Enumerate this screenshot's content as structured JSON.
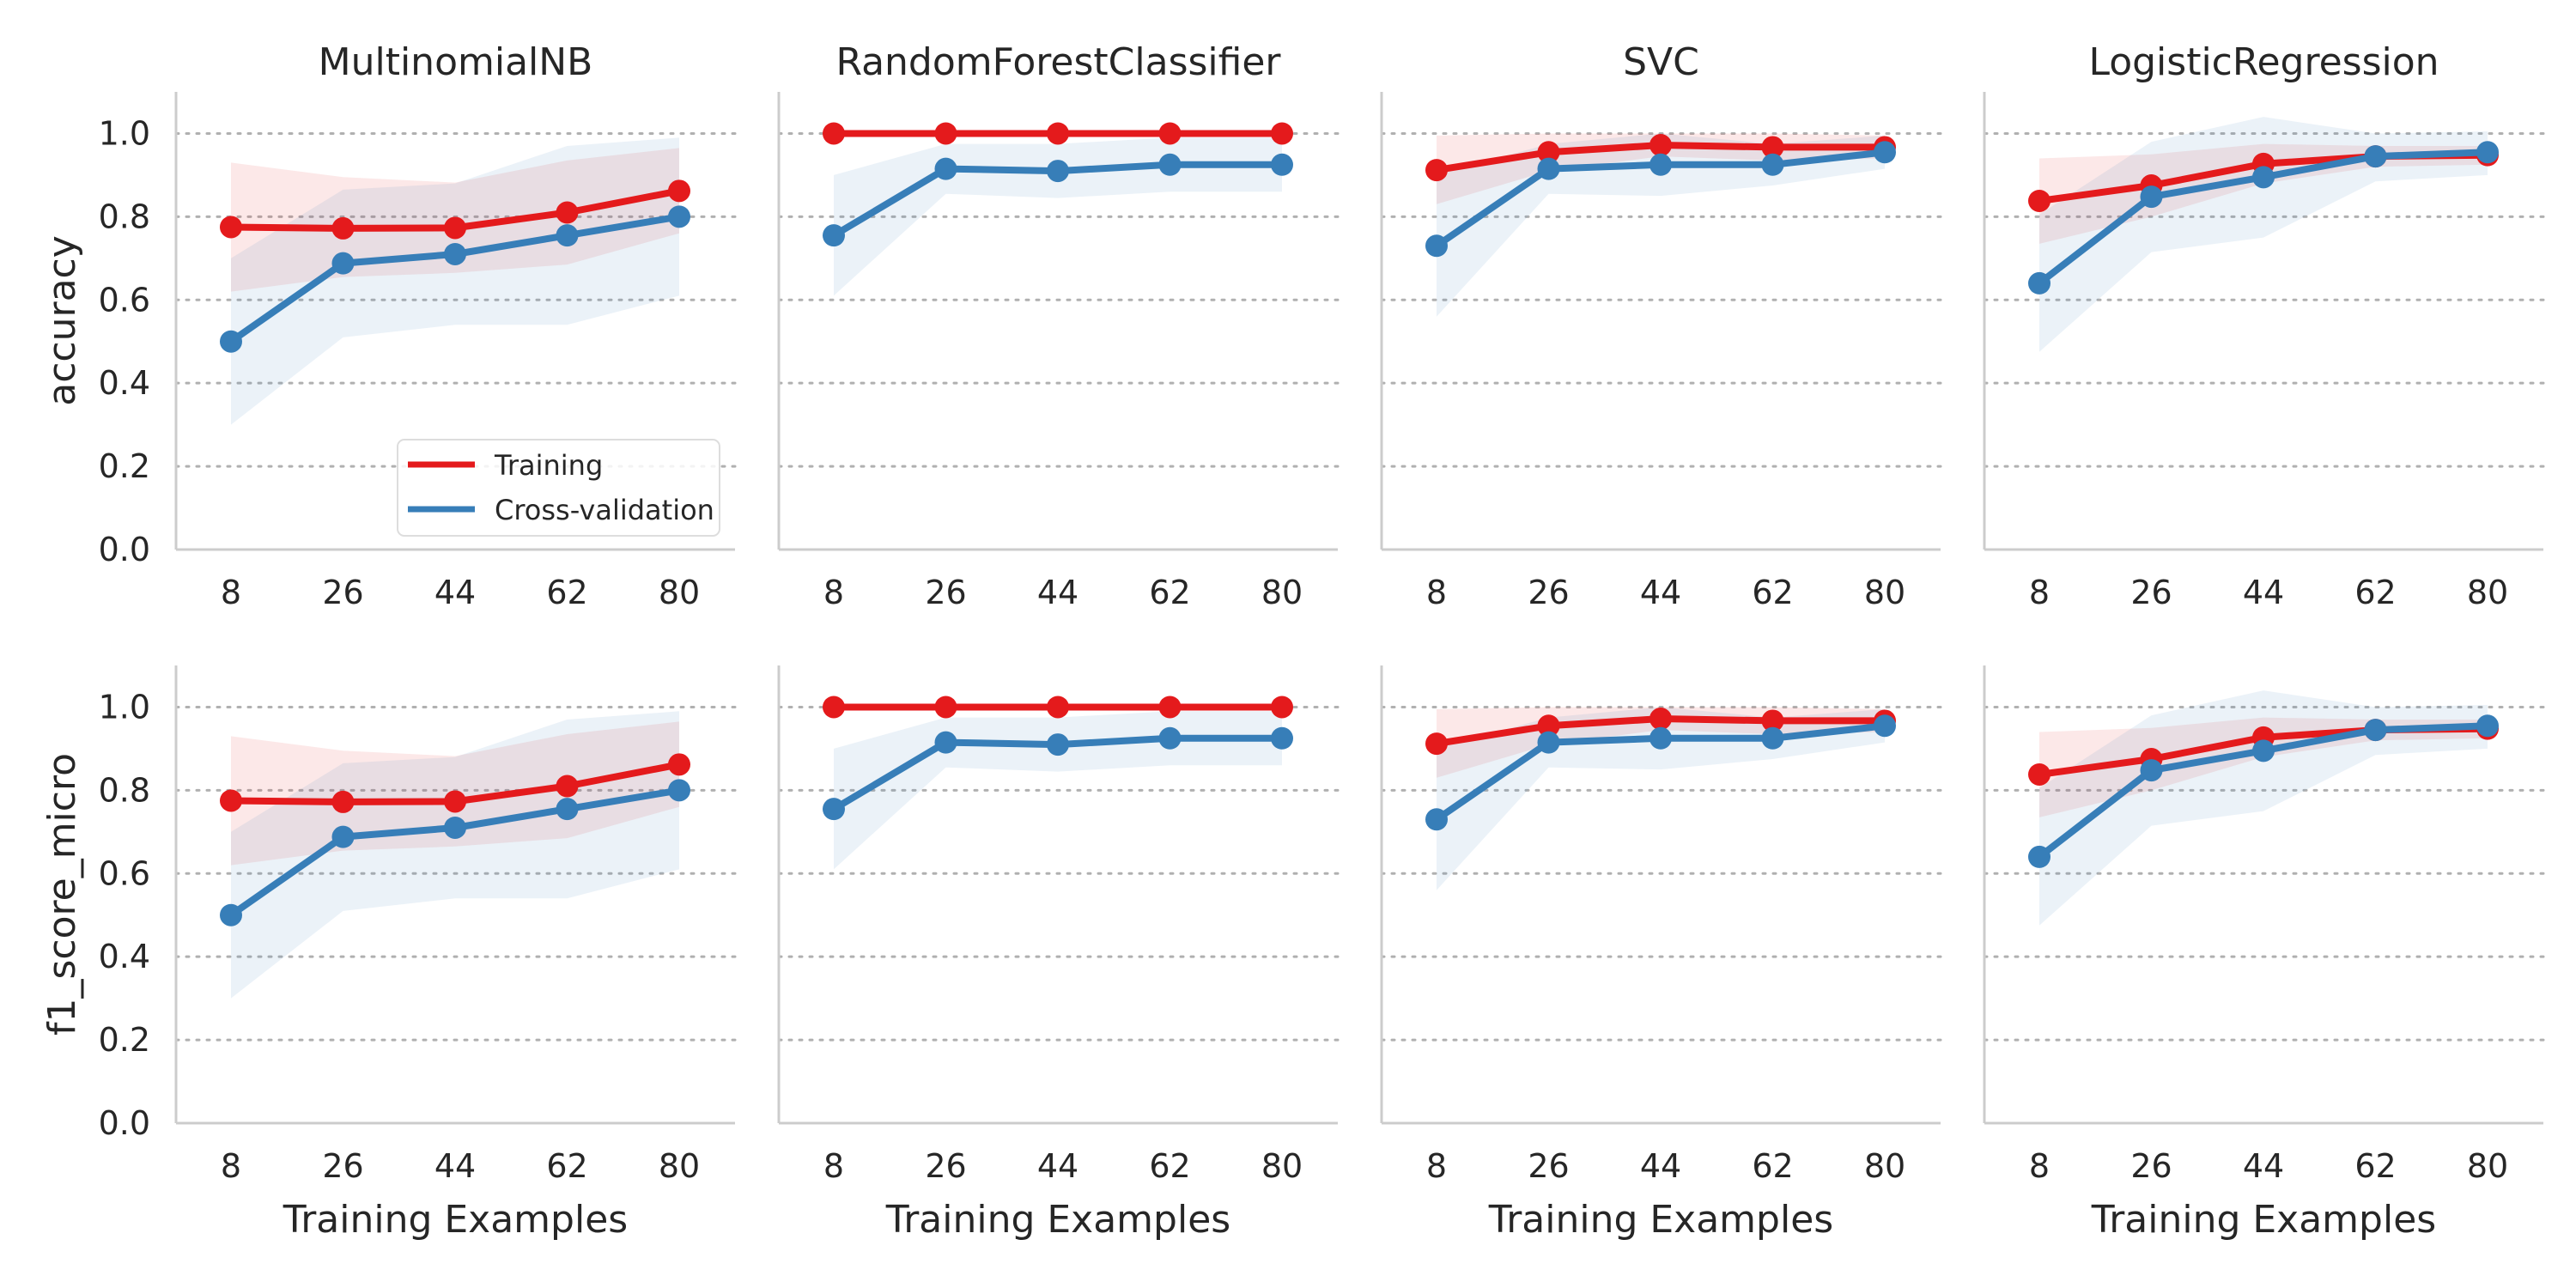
{
  "chart_data": {
    "type": "line",
    "layout": "2x4 facet grid",
    "x": [
      8,
      26,
      44,
      62,
      80
    ],
    "xlabel": "Training Examples",
    "ylim": [
      0,
      1.1
    ],
    "yticks": [
      0.0,
      0.2,
      0.4,
      0.6,
      0.8,
      1.0
    ],
    "ytick_labels": [
      "0.0",
      "0.2",
      "0.4",
      "0.6",
      "0.8",
      "1.0"
    ],
    "grid": "horizontal dotted",
    "legend": {
      "placement": "lower-right of first panel",
      "entries": [
        "Training",
        "Cross-validation"
      ]
    },
    "colors": {
      "Training": "#e41a1c",
      "Cross-validation": "#377eb8"
    },
    "columns": [
      "MultinomialNB",
      "RandomForestClassifier",
      "SVC",
      "LogisticRegression"
    ],
    "rows": [
      {
        "ylabel": "accuracy",
        "panels": [
          {
            "title": "MultinomialNB",
            "series": [
              {
                "name": "Training",
                "values": [
                  0.775,
                  0.772,
                  0.773,
                  0.81,
                  0.862
                ],
                "lower": [
                  0.62,
                  0.655,
                  0.665,
                  0.685,
                  0.76
                ],
                "upper": [
                  0.93,
                  0.895,
                  0.882,
                  0.935,
                  0.965
                ]
              },
              {
                "name": "Cross-validation",
                "values": [
                  0.5,
                  0.688,
                  0.71,
                  0.755,
                  0.8
                ],
                "lower": [
                  0.3,
                  0.51,
                  0.54,
                  0.54,
                  0.61
                ],
                "upper": [
                  0.7,
                  0.865,
                  0.88,
                  0.97,
                  0.99
                ]
              }
            ]
          },
          {
            "title": "RandomForestClassifier",
            "series": [
              {
                "name": "Training",
                "values": [
                  1.0,
                  1.0,
                  1.0,
                  1.0,
                  1.0
                ],
                "lower": [
                  1.0,
                  1.0,
                  1.0,
                  1.0,
                  1.0
                ],
                "upper": [
                  1.0,
                  1.0,
                  1.0,
                  1.0,
                  1.0
                ]
              },
              {
                "name": "Cross-validation",
                "values": [
                  0.755,
                  0.915,
                  0.91,
                  0.925,
                  0.925
                ],
                "lower": [
                  0.61,
                  0.855,
                  0.845,
                  0.86,
                  0.86
                ],
                "upper": [
                  0.9,
                  0.975,
                  0.975,
                  0.99,
                  0.99
                ]
              }
            ]
          },
          {
            "title": "SVC",
            "series": [
              {
                "name": "Training",
                "values": [
                  0.912,
                  0.955,
                  0.972,
                  0.967,
                  0.967
                ],
                "lower": [
                  0.83,
                  0.91,
                  0.945,
                  0.935,
                  0.94
                ],
                "upper": [
                  0.995,
                  1.0,
                  1.0,
                  1.0,
                  0.995
                ]
              },
              {
                "name": "Cross-validation",
                "values": [
                  0.73,
                  0.915,
                  0.925,
                  0.925,
                  0.955
                ],
                "lower": [
                  0.56,
                  0.855,
                  0.85,
                  0.875,
                  0.915
                ],
                "upper": [
                  0.9,
                  0.975,
                  1.0,
                  0.975,
                  0.995
                ]
              }
            ]
          },
          {
            "title": "LogisticRegression",
            "series": [
              {
                "name": "Training",
                "values": [
                  0.838,
                  0.875,
                  0.927,
                  0.945,
                  0.948
                ],
                "lower": [
                  0.735,
                  0.8,
                  0.88,
                  0.92,
                  0.925
                ],
                "upper": [
                  0.94,
                  0.95,
                  0.975,
                  0.97,
                  0.97
                ]
              },
              {
                "name": "Cross-validation",
                "values": [
                  0.64,
                  0.848,
                  0.895,
                  0.945,
                  0.955
                ],
                "lower": [
                  0.475,
                  0.715,
                  0.75,
                  0.885,
                  0.9
                ],
                "upper": [
                  0.805,
                  0.98,
                  1.04,
                  1.0,
                  1.005
                ]
              }
            ]
          }
        ]
      },
      {
        "ylabel": "f1_score_micro",
        "panels": [
          {
            "title": "",
            "series": [
              {
                "name": "Training",
                "values": [
                  0.775,
                  0.772,
                  0.773,
                  0.81,
                  0.862
                ],
                "lower": [
                  0.62,
                  0.655,
                  0.665,
                  0.685,
                  0.76
                ],
                "upper": [
                  0.93,
                  0.895,
                  0.882,
                  0.935,
                  0.965
                ]
              },
              {
                "name": "Cross-validation",
                "values": [
                  0.5,
                  0.688,
                  0.71,
                  0.755,
                  0.8
                ],
                "lower": [
                  0.3,
                  0.51,
                  0.54,
                  0.54,
                  0.61
                ],
                "upper": [
                  0.7,
                  0.865,
                  0.88,
                  0.97,
                  0.99
                ]
              }
            ]
          },
          {
            "title": "",
            "series": [
              {
                "name": "Training",
                "values": [
                  1.0,
                  1.0,
                  1.0,
                  1.0,
                  1.0
                ],
                "lower": [
                  1.0,
                  1.0,
                  1.0,
                  1.0,
                  1.0
                ],
                "upper": [
                  1.0,
                  1.0,
                  1.0,
                  1.0,
                  1.0
                ]
              },
              {
                "name": "Cross-validation",
                "values": [
                  0.755,
                  0.915,
                  0.91,
                  0.925,
                  0.925
                ],
                "lower": [
                  0.61,
                  0.855,
                  0.845,
                  0.86,
                  0.86
                ],
                "upper": [
                  0.9,
                  0.975,
                  0.975,
                  0.99,
                  0.99
                ]
              }
            ]
          },
          {
            "title": "",
            "series": [
              {
                "name": "Training",
                "values": [
                  0.912,
                  0.955,
                  0.972,
                  0.967,
                  0.967
                ],
                "lower": [
                  0.83,
                  0.91,
                  0.945,
                  0.935,
                  0.94
                ],
                "upper": [
                  0.995,
                  1.0,
                  1.0,
                  1.0,
                  0.995
                ]
              },
              {
                "name": "Cross-validation",
                "values": [
                  0.73,
                  0.915,
                  0.925,
                  0.925,
                  0.955
                ],
                "lower": [
                  0.56,
                  0.855,
                  0.85,
                  0.875,
                  0.915
                ],
                "upper": [
                  0.9,
                  0.975,
                  1.0,
                  0.975,
                  0.995
                ]
              }
            ]
          },
          {
            "title": "",
            "series": [
              {
                "name": "Training",
                "values": [
                  0.838,
                  0.875,
                  0.927,
                  0.945,
                  0.948
                ],
                "lower": [
                  0.735,
                  0.8,
                  0.88,
                  0.92,
                  0.925
                ],
                "upper": [
                  0.94,
                  0.95,
                  0.975,
                  0.97,
                  0.97
                ]
              },
              {
                "name": "Cross-validation",
                "values": [
                  0.64,
                  0.848,
                  0.895,
                  0.945,
                  0.955
                ],
                "lower": [
                  0.475,
                  0.715,
                  0.75,
                  0.885,
                  0.9
                ],
                "upper": [
                  0.805,
                  0.98,
                  1.04,
                  1.0,
                  1.005
                ]
              }
            ]
          }
        ]
      }
    ]
  }
}
